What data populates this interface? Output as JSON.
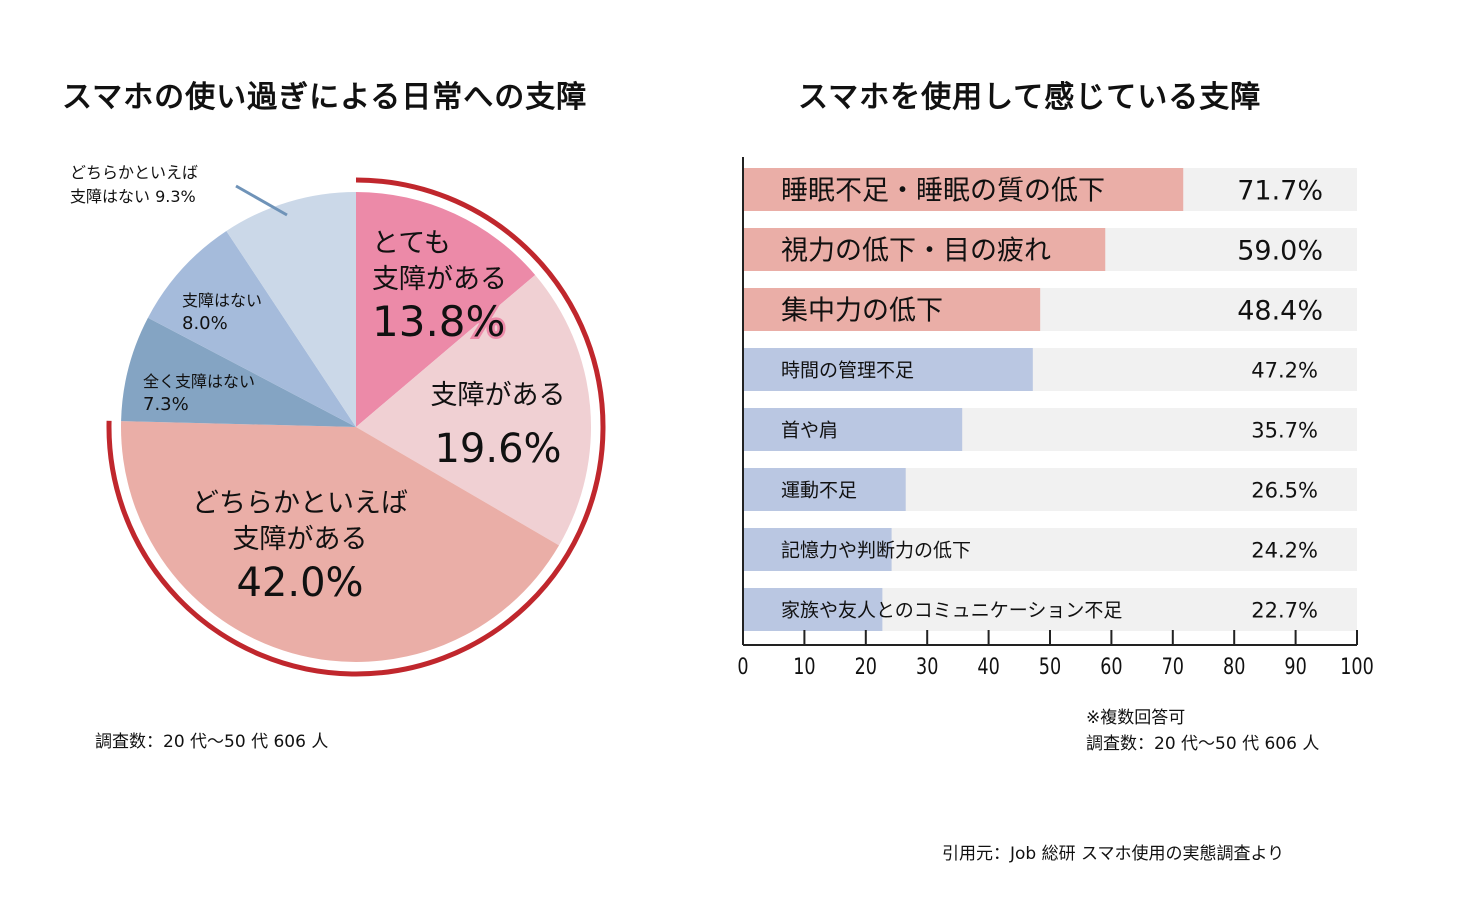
{
  "chart_data": [
    {
      "type": "pie",
      "title": "スマホの使い過ぎによる日常への支障",
      "start": "top",
      "direction": "clockwise",
      "highlight_ring": "surrounds the three '支障がある' slices",
      "slices": [
        {
          "label_lines": [
            "とても",
            "支障がある"
          ],
          "value": 13.8,
          "display": "13.8%",
          "color": "#ec8aa8"
        },
        {
          "label_lines": [
            "支障がある"
          ],
          "value": 19.6,
          "display": "19.6%",
          "color": "#f0d0d3"
        },
        {
          "label_lines": [
            "どちらかといえば",
            "支障がある"
          ],
          "value": 42.0,
          "display": "42.0%",
          "color": "#eaaea7"
        },
        {
          "label_lines": [
            "全く支障はない"
          ],
          "value": 7.3,
          "display": "7.3%",
          "color": "#84a4c3"
        },
        {
          "label_lines": [
            "支障はない"
          ],
          "value": 8.0,
          "display": "8.0%",
          "color": "#a5bbdb"
        },
        {
          "label_lines": [
            "どちらかといえば",
            "支障はない"
          ],
          "value": 9.3,
          "display": "9.3%",
          "color": "#cbd8e8"
        }
      ],
      "note": "調査数：20 代〜50 代 606 人"
    },
    {
      "type": "bar",
      "orientation": "horizontal",
      "title": "スマホを使用して感じている支障",
      "categories": [
        "睡眠不足・睡眠の質の低下",
        "視力の低下・目の疲れ",
        "集中力の低下",
        "時間の管理不足",
        "首や肩",
        "運動不足",
        "記憶力や判断力の低下",
        "家族や友人とのコミュニケーション不足"
      ],
      "values": [
        71.7,
        59.0,
        48.4,
        47.2,
        35.7,
        26.5,
        24.2,
        22.7
      ],
      "display": [
        "71.7%",
        "59.0%",
        "48.4%",
        "47.2%",
        "35.7%",
        "26.5%",
        "24.2%",
        "22.7%"
      ],
      "highlight_top": 3,
      "colors": {
        "highlight": "#eaaea7",
        "normal": "#bac7e2",
        "track": "#f1f1f1",
        "axis": "#222222"
      },
      "xlim": [
        0,
        100
      ],
      "xticks": [
        0,
        10,
        20,
        30,
        40,
        50,
        60,
        70,
        80,
        90,
        100
      ],
      "xtick_labels": [
        "0",
        "10",
        "20",
        "30",
        "40",
        "50",
        "60",
        "70",
        "80",
        "90",
        "100"
      ],
      "xlabel": "",
      "ylabel": "",
      "notes": [
        "※複数回答可",
        "調査数：20 代〜50 代 606 人"
      ]
    }
  ],
  "colors": {
    "ring": "#c0272d",
    "leader_line": "#6f93b8"
  },
  "source": "引用元：Job 総研  スマホ使用の実態調査より"
}
